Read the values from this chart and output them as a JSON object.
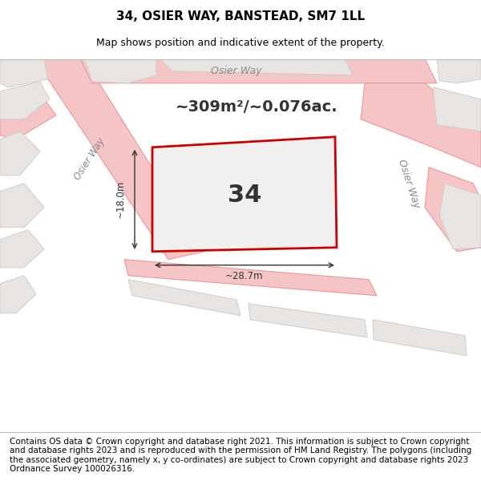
{
  "title_line1": "34, OSIER WAY, BANSTEAD, SM7 1LL",
  "title_line2": "Map shows position and indicative extent of the property.",
  "footer_text": "Contains OS data © Crown copyright and database right 2021. This information is subject to Crown copyright and database rights 2023 and is reproduced with the permission of HM Land Registry. The polygons (including the associated geometry, namely x, y co-ordinates) are subject to Crown copyright and database rights 2023 Ordnance Survey 100026316.",
  "area_text": "~309m²/~0.076ac.",
  "plot_number": "34",
  "dim_width": "~28.7m",
  "dim_height": "~18.0m",
  "map_background": "#f2efef",
  "road_fill": "#f5c5c5",
  "road_edge": "#e89898",
  "block_color": "#e8e4e2",
  "block_edge": "#d0ccca",
  "plot_outline": "#cc0000",
  "plot_fill": "#f2efef",
  "text_color": "#333333",
  "road_label_color": "#888888",
  "title_fontsize": 11,
  "subtitle_fontsize": 9,
  "footer_fontsize": 7.5,
  "area_fontsize": 14,
  "plot_num_fontsize": 22
}
